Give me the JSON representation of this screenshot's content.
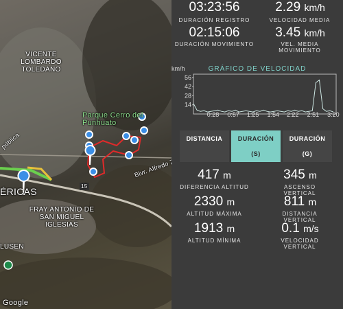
{
  "map": {
    "labels": [
      "VICENTE LOMBARDO TOLEDANO",
      "Parque Cerro del Punhuato",
      "Blvr. Alfredo Z",
      "FRAY ANTONIO DE SAN MIGUEL IGLESIAS",
      "ÉRICAS",
      "LUSEN",
      "pública",
      "15",
      "Google"
    ]
  },
  "stats_top": [
    {
      "value": "03:23:56",
      "unit": "",
      "label": "DURACIÓN REGISTRO"
    },
    {
      "value": "2.29",
      "unit": "km/h",
      "label": "VELOCIDAD MEDIA"
    },
    {
      "value": "02:15:06",
      "unit": "",
      "label": "DURACIÓN MOVIMIENTO"
    },
    {
      "value": "3.45",
      "unit": "km/h",
      "label": "VEL. MEDIA MOVIMIENTO"
    }
  ],
  "speed_chart": {
    "type": "line",
    "title": "GRÁFICO DE VELOCIDAD",
    "y_label": "km/h",
    "color": "#cfe9e5",
    "x": [
      0,
      5,
      10,
      15,
      20,
      25,
      30,
      35,
      40,
      45,
      50,
      55,
      60,
      65,
      70,
      75,
      80,
      85,
      90,
      95,
      100,
      105,
      110,
      115,
      120,
      125,
      130,
      135,
      140,
      145,
      150,
      155,
      160,
      165,
      170,
      175,
      180,
      185,
      190,
      195,
      200
    ],
    "values": [
      16,
      6,
      4,
      5,
      3,
      4,
      5,
      6,
      4,
      3,
      5,
      4,
      6,
      3,
      4,
      5,
      4,
      3,
      5,
      4,
      6,
      4,
      3,
      4,
      5,
      4,
      3,
      5,
      4,
      6,
      4,
      5,
      3,
      4,
      5,
      48,
      52,
      8,
      4,
      5,
      3
    ],
    "xlim": [
      0,
      204
    ],
    "ylim": [
      0,
      61
    ],
    "yticks": [
      14,
      28,
      42,
      56
    ],
    "xticks": [
      {
        "value": 28,
        "label": "0:28"
      },
      {
        "value": 57,
        "label": "0:57"
      },
      {
        "value": 85,
        "label": "1:25"
      },
      {
        "value": 114,
        "label": "1:54"
      },
      {
        "value": 142,
        "label": "2:22"
      },
      {
        "value": 171,
        "label": "2:51"
      },
      {
        "value": 200,
        "label": "3:20"
      }
    ]
  },
  "tabs": [
    {
      "label": "DISTANCIA",
      "sub": ""
    },
    {
      "label": "DURACIÓN",
      "sub": "(S)"
    },
    {
      "label": "DURACIÓN",
      "sub": "(G)"
    }
  ],
  "stats_bottom": [
    {
      "value": "417",
      "unit": "m",
      "label": "DIFERENCIA ALTITUD"
    },
    {
      "value": "345",
      "unit": "m",
      "label": "ASCENSO VERTICAL"
    },
    {
      "value": "2330",
      "unit": "m",
      "label": "ALTITUD MÁXIMA"
    },
    {
      "value": "811",
      "unit": "m",
      "label": "DISTANCIA VERTICAL"
    },
    {
      "value": "1913",
      "unit": "m",
      "label": "ALTITUD MÍNIMA"
    },
    {
      "value": "0.1",
      "unit": "m/s",
      "label": "VELOCIDAD VERTICAL"
    }
  ]
}
